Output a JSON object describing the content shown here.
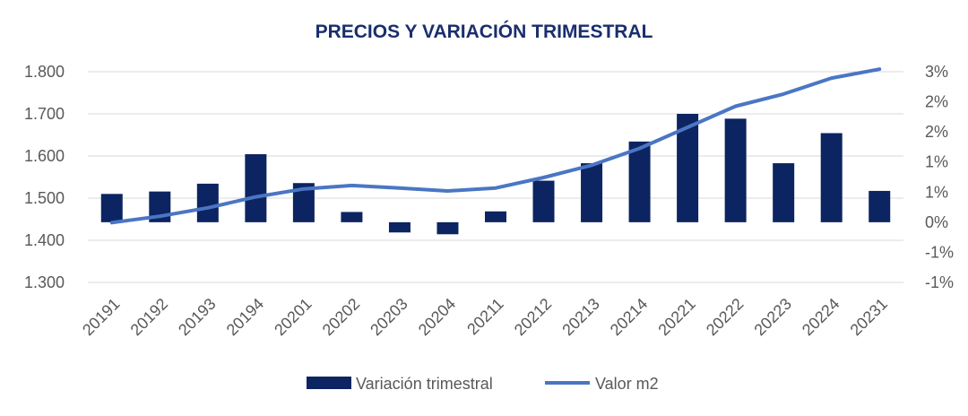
{
  "chart_data": {
    "type": "bar+line",
    "title": "PRECIOS Y VARIACIÓN TRIMESTRAL",
    "categories": [
      "20191",
      "20192",
      "20193",
      "20194",
      "20201",
      "20202",
      "20203",
      "20204",
      "20211",
      "20212",
      "20213",
      "20214",
      "20221",
      "20222",
      "20223",
      "20224",
      "20231"
    ],
    "left_axis": {
      "ticks": [
        "1.800",
        "1.700",
        "1.600",
        "1.500",
        "1.400",
        "1.300"
      ],
      "ylim": [
        1300,
        1800
      ]
    },
    "right_axis": {
      "ticks": [
        "3%",
        "2%",
        "2%",
        "1%",
        "1%",
        "0%",
        "-1%",
        "-1%"
      ],
      "ylim": [
        -1.0,
        2.5
      ]
    },
    "grid": true,
    "legend_position": "bottom",
    "series": [
      {
        "name": "Variación trimestral",
        "type": "bar",
        "axis": "right",
        "color": "#0c2461",
        "values": [
          0.47,
          0.51,
          0.64,
          1.13,
          0.65,
          0.17,
          -0.17,
          -0.2,
          0.18,
          0.69,
          0.98,
          1.34,
          1.8,
          1.72,
          0.98,
          1.48,
          0.52
        ]
      },
      {
        "name": "Valor m2",
        "type": "line",
        "axis": "left",
        "color": "#4a76c4",
        "values": [
          1442,
          1457,
          1477,
          1503,
          1522,
          1530,
          1524,
          1517,
          1524,
          1549,
          1578,
          1618,
          1668,
          1718,
          1747,
          1785,
          1806
        ]
      }
    ]
  }
}
